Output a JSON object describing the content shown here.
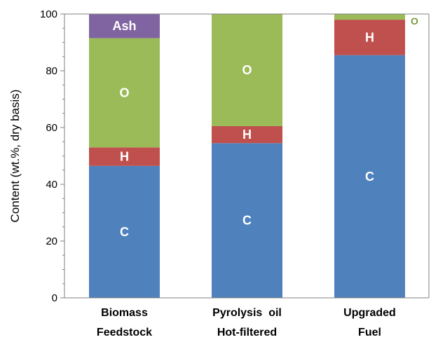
{
  "chart_data": {
    "type": "bar",
    "stacked": true,
    "categories": [
      [
        "Biomass",
        "Feedstock"
      ],
      [
        "Pyrolysis  oil",
        "Hot-filtered"
      ],
      [
        "Upgraded",
        "Fuel"
      ]
    ],
    "series": [
      {
        "name": "C",
        "values": [
          46.5,
          54.5,
          85.5
        ]
      },
      {
        "name": "H",
        "values": [
          6.5,
          6.0,
          12.5
        ]
      },
      {
        "name": "O",
        "values": [
          38.5,
          39.5,
          2.0
        ]
      },
      {
        "name": "Ash",
        "values": [
          8.5,
          0,
          0
        ]
      }
    ],
    "segment_labels": [
      [
        "C",
        "H",
        "O",
        "Ash"
      ],
      [
        "C",
        "H",
        "O",
        ""
      ],
      [
        "C",
        "H",
        "O",
        ""
      ]
    ],
    "title": "",
    "xlabel": "",
    "ylabel": "Content (wt.%, dry basis)",
    "ylim": [
      0,
      100
    ],
    "yticks": [
      0,
      20,
      40,
      60,
      80,
      100
    ],
    "grid": false,
    "colors": {
      "C": "#4f81bd",
      "H": "#c0504d",
      "O": "#9bbb59",
      "Ash": "#8064a2"
    }
  }
}
